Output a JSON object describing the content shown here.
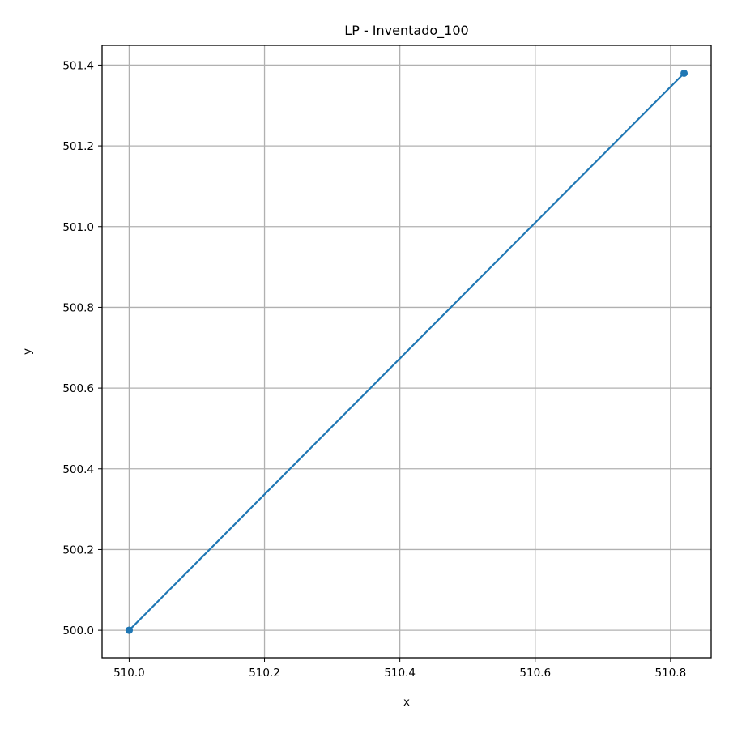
{
  "chart_data": {
    "type": "line",
    "title": "LP - Inventado_100",
    "xlabel": "x",
    "ylabel": "y",
    "xlim": [
      509.96,
      510.86
    ],
    "ylim": [
      499.932,
      501.449
    ],
    "xticks": [
      510.0,
      510.2,
      510.4,
      510.6,
      510.8
    ],
    "xtick_labels": [
      "510.0",
      "510.2",
      "510.4",
      "510.6",
      "510.8"
    ],
    "yticks": [
      500.0,
      500.2,
      500.4,
      500.6,
      500.8,
      501.0,
      501.2,
      501.4
    ],
    "ytick_labels": [
      "500.0",
      "500.2",
      "500.4",
      "500.6",
      "500.8",
      "501.0",
      "501.2",
      "501.4"
    ],
    "grid": true,
    "series": [
      {
        "x": [
          510.0,
          510.82,
          510.0
        ],
        "y": [
          500.0,
          501.38,
          500.0
        ],
        "color": "#1f77b4",
        "marker": "circle"
      }
    ]
  }
}
